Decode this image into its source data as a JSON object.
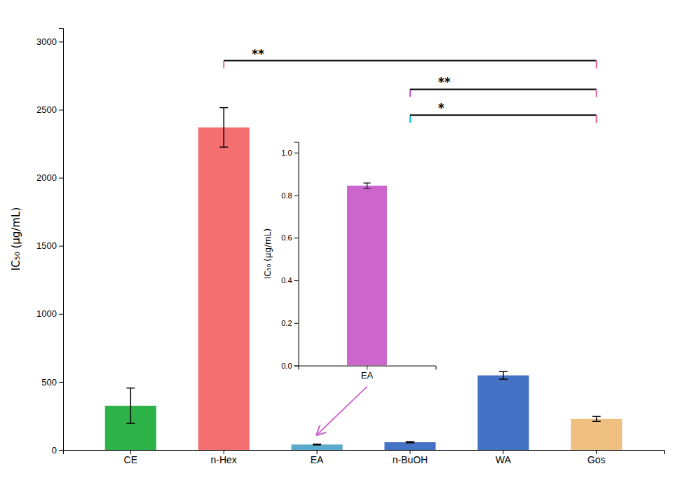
{
  "chart_data": [
    {
      "type": "bar",
      "categories": [
        "CE",
        "n-Hex",
        "EA",
        "n-BuOH",
        "WA",
        "Gos"
      ],
      "values": [
        325,
        2370,
        40,
        57,
        548,
        228
      ],
      "errors": [
        130,
        145,
        3,
        5,
        28,
        18
      ],
      "colors": [
        "#2db34a",
        "#f47070",
        "#5aabcc",
        "#4472c4",
        "#4472c4",
        "#f0c080"
      ],
      "ylabel": "IC₅₀ (μg/mL)",
      "ylim": [
        0,
        3100
      ],
      "yticks": [
        0,
        500,
        1000,
        1500,
        2000,
        2500,
        3000
      ],
      "grid": false,
      "annotations": [
        {
          "text": "**",
          "x1": "n-Hex",
          "x2": "Gos",
          "y": 2860,
          "colors": [
            "#f07090",
            "#e060a0"
          ]
        },
        {
          "text": "**",
          "x1": "n-BuOH",
          "x2": "Gos",
          "y": 2650,
          "colors": [
            "#cc55cc",
            "#e060a0"
          ]
        },
        {
          "text": "*",
          "x1": "n-BuOH",
          "x2": "Gos",
          "y": 2460,
          "colors": [
            "#00cccc",
            "#e060a0"
          ]
        }
      ]
    },
    {
      "type": "bar",
      "categories": [
        "EA"
      ],
      "values": [
        0.845
      ],
      "errors": [
        0.012
      ],
      "color": "#cc66cc",
      "ylabel": "IC₅₀ (μg/mL)",
      "ylim": [
        0,
        1.05
      ],
      "yticks": [
        {
          "value": 0.0,
          "label": "0.0"
        },
        0.2,
        0.4,
        0.6,
        0.8,
        {
          "value": 1.0,
          "label": "1.0"
        }
      ],
      "grid": false
    }
  ]
}
